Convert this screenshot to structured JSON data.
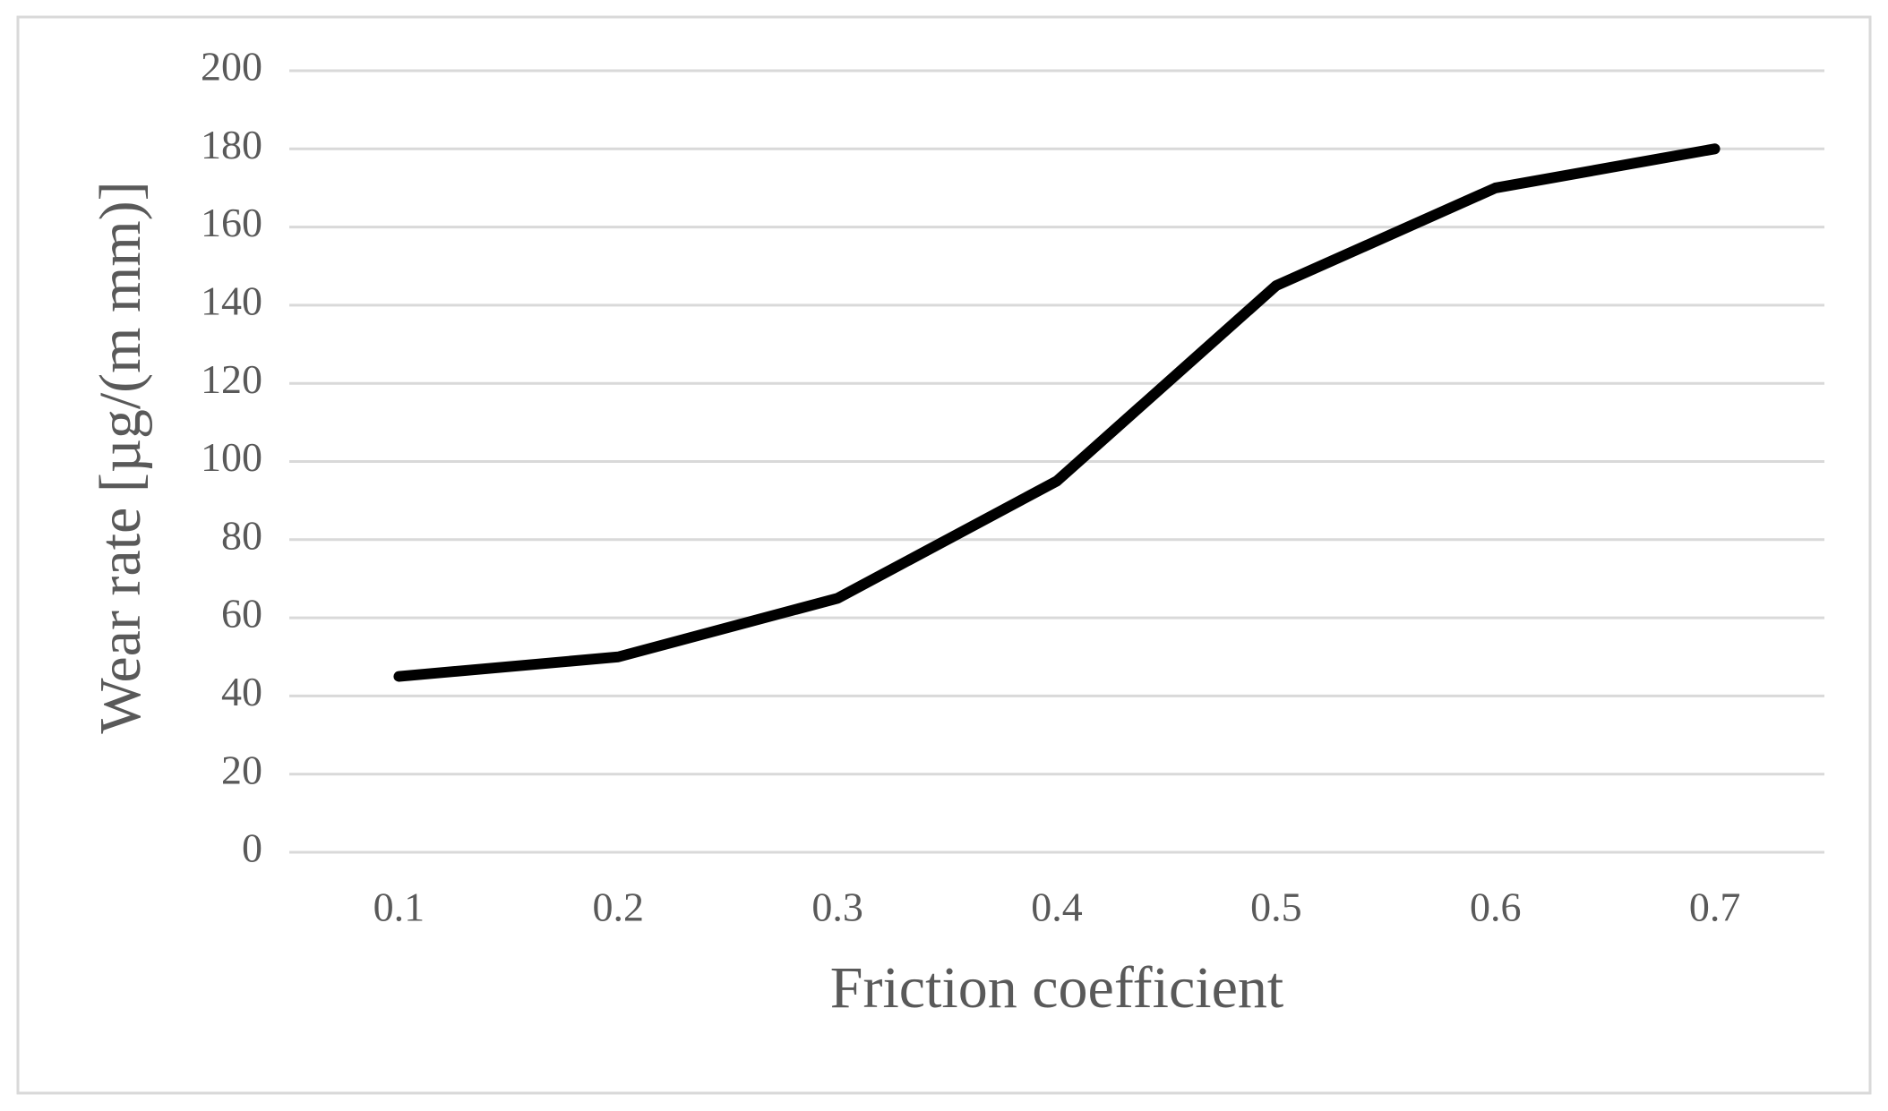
{
  "chart_data": {
    "type": "line",
    "x_label": "Friction coefficient",
    "y_label": "Wear rate [µg/(m mm)]",
    "categories": [
      "0.1",
      "0.2",
      "0.3",
      "0.4",
      "0.5",
      "0.6",
      "0.7"
    ],
    "values": [
      45,
      50,
      65,
      95,
      145,
      170,
      180
    ],
    "color": "#000000",
    "ylim": [
      0,
      200
    ],
    "yticks": [
      0,
      20,
      40,
      60,
      80,
      100,
      120,
      140,
      160,
      180,
      200
    ],
    "grid": true
  }
}
